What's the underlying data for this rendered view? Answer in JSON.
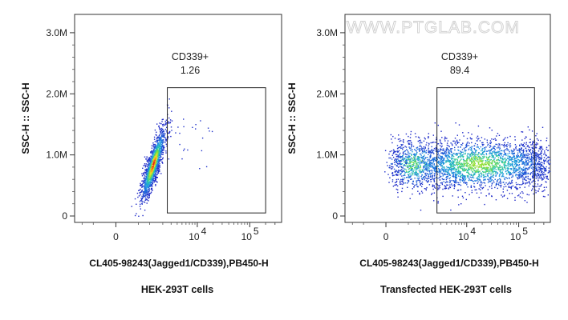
{
  "watermark": "WWW.PTGLAB.COM",
  "chart_data": [
    {
      "type": "scatter",
      "xlabel": "CL405-98243(Jagged1/CD339),PB450-H",
      "ylabel": "SSC-H :: SSC-H",
      "caption": "HEK-293T cells",
      "x_scale": "biexponential",
      "y_ticks": [
        {
          "value": 0,
          "label": "0"
        },
        {
          "value": 1000000,
          "label": "1.0M"
        },
        {
          "value": 2000000,
          "label": "2.0M"
        },
        {
          "value": 3000000,
          "label": "3.0M"
        }
      ],
      "x_ticks": [
        {
          "value": 0,
          "label": "0",
          "sup": ""
        },
        {
          "value": 10000,
          "label": "10",
          "sup": "4"
        },
        {
          "value": 100000,
          "label": "10",
          "sup": "5"
        }
      ],
      "gate": {
        "name": "CD339+",
        "percent": "1.26",
        "x_min": 2500,
        "x_max": 200000,
        "y_min": 50000,
        "y_max": 2100000
      },
      "population": {
        "x_center": 1200,
        "y_center": 850000,
        "shape": "tight diagonal cluster",
        "colormap": "density (blue-green-yellow-red)"
      }
    },
    {
      "type": "scatter",
      "xlabel": "CL405-98243(Jagged1/CD339),PB450-H",
      "ylabel": "SSC-H :: SSC-H",
      "caption": "Transfected HEK-293T cells",
      "x_scale": "biexponential",
      "y_ticks": [
        {
          "value": 0,
          "label": "0"
        },
        {
          "value": 1000000,
          "label": "1.0M"
        },
        {
          "value": 2000000,
          "label": "2.0M"
        },
        {
          "value": 3000000,
          "label": "3.0M"
        }
      ],
      "x_ticks": [
        {
          "value": 0,
          "label": "0",
          "sup": ""
        },
        {
          "value": 10000,
          "label": "10",
          "sup": "4"
        },
        {
          "value": 100000,
          "label": "10",
          "sup": "5"
        }
      ],
      "gate": {
        "name": "CD339+",
        "percent": "89.4",
        "x_min": 2500,
        "x_max": 200000,
        "y_min": 50000,
        "y_max": 2100000
      },
      "population": {
        "x_center": 30000,
        "y_center": 850000,
        "shape": "broad horizontal band",
        "colormap": "density (blue-green-yellow-red)"
      }
    }
  ]
}
